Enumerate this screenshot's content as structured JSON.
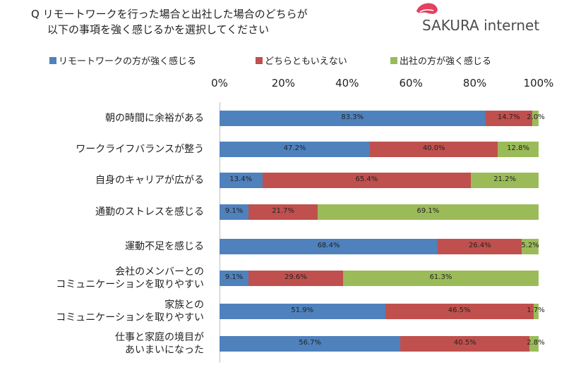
{
  "title": {
    "line1": "Q リモートワークを行った場合と出社した場合のどちらが",
    "line2": "以下の事項を強く感じるかを選択してください"
  },
  "logo": {
    "text": "SAKURA internet",
    "icon": "sakura-cherry-icon"
  },
  "colors": {
    "remote": "#4f81bd",
    "neutral": "#c0504d",
    "office": "#9bbb59"
  },
  "chart_data": {
    "type": "bar",
    "orientation": "horizontal",
    "stacked": true,
    "percent": true,
    "xlim": [
      0,
      100
    ],
    "ticks": [
      "0%",
      "20%",
      "40%",
      "60%",
      "80%",
      "100%"
    ],
    "legend_position": "top",
    "categories": [
      [
        "朝の時間に余裕がある"
      ],
      [
        "ワークライフバランスが整う"
      ],
      [
        "自身のキャリアが広がる"
      ],
      [
        "通勤のストレスを感じる"
      ],
      [
        "運動不足を感じる"
      ],
      [
        "会社のメンバーとの",
        "コミュニケーションを取りやすい"
      ],
      [
        "家族との",
        "コミュニケーションを取りやすい"
      ],
      [
        "仕事と家庭の境目が",
        "あいまいになった"
      ]
    ],
    "series": [
      {
        "name": "リモートワークの方が強く感じる",
        "values": [
          83.3,
          47.2,
          13.4,
          9.1,
          68.4,
          9.1,
          51.9,
          56.7
        ],
        "labels": [
          "83.3%",
          "47.2%",
          "13.4%",
          "9.1%",
          "68.4%",
          "9.1%",
          "51.9%",
          "56.7%"
        ]
      },
      {
        "name": "どちらともいえない",
        "values": [
          14.7,
          40.0,
          65.4,
          21.7,
          26.4,
          29.6,
          46.5,
          40.5
        ],
        "labels": [
          "14.7%",
          "40.0%",
          "65.4%",
          "21.7%",
          "26.4%",
          "29.6%",
          "46.5%",
          "40.5%"
        ]
      },
      {
        "name": "出社の方が強く感じる",
        "values": [
          2.0,
          12.8,
          21.2,
          69.1,
          5.2,
          61.3,
          1.7,
          2.8
        ],
        "labels": [
          "2.0%",
          "12.8%",
          "21.2%",
          "69.1%",
          "5.2%",
          "61.3%",
          "1.7%",
          "2.8%"
        ]
      }
    ]
  }
}
